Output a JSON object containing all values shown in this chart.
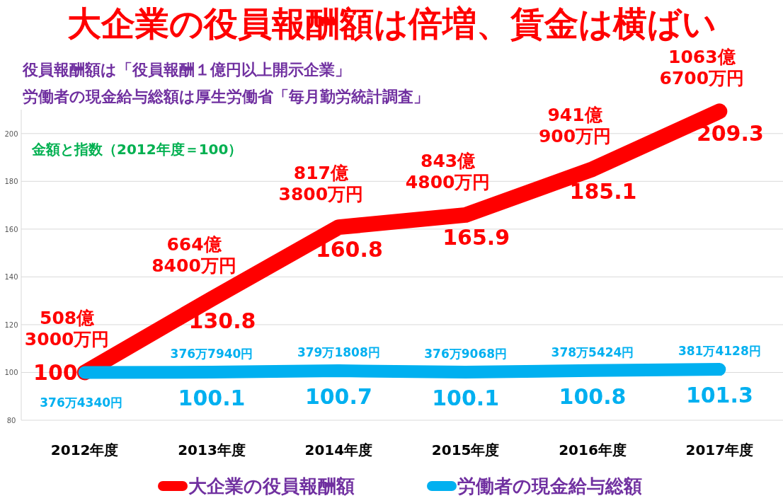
{
  "chart_data": {
    "type": "line",
    "title": "大企業の役員報酬額は倍増、賃金は横ばい",
    "subtitle": "役員報酬額は「役員報酬１億円以上開示企業」",
    "categories": [
      "2012年度",
      "2013年度",
      "2014年度",
      "2015年度",
      "2016年度",
      "2017年度"
    ],
    "series": [
      {
        "name": "大企業の役員報酬額",
        "color": "#ff0000",
        "values": [
          100,
          130.8,
          160.8,
          165.9,
          185.1,
          209.3
        ],
        "value_labels": [
          "100",
          "130.8",
          "160.8",
          "165.9",
          "185.1",
          "209.3"
        ]
      },
      {
        "name": "労働者の現金給与総額",
        "color": "#00b0f0",
        "values": [
          100,
          100.1,
          100.7,
          100.1,
          100.8,
          101.3
        ],
        "value_labels": [
          null,
          "100.1",
          "100.7",
          "100.1",
          "100.8",
          "101.3"
        ]
      }
    ],
    "annotations": [
      "労働者の現金給与総額は厚生労働省「毎月勤労統計調査」",
      "金額と指数（2012年度＝100）",
      {
        "text": "508億\n3000万円",
        "x": "2012年度",
        "y": 100
      },
      {
        "text": "664億\n8400万円",
        "x": "2013年度",
        "y": 130.8
      },
      {
        "text": "817億\n3800万円",
        "x": "2014年度",
        "y": 160.8
      },
      {
        "text": "843億\n4800万円",
        "x": "2015年度",
        "y": 165.9
      },
      {
        "text": "941億\n900万円",
        "x": "2016年度",
        "y": 185.1
      },
      {
        "text": "1063億\n6700万円",
        "x": "2017年度",
        "y": 209.3
      },
      {
        "text": "376万4340円",
        "x": "2012年度",
        "y": 100
      },
      {
        "text": "376万7940円",
        "x": "2013年度",
        "y": 100.1
      },
      {
        "text": "379万1808円",
        "x": "2014年度",
        "y": 100.7
      },
      {
        "text": "376万9068円",
        "x": "2015年度",
        "y": 100.1
      },
      {
        "text": "378万5424円",
        "x": "2016年度",
        "y": 100.8
      },
      {
        "text": "381万4128円",
        "x": "2017年度",
        "y": 101.3
      }
    ],
    "ylim": [
      80,
      210
    ],
    "yticks": [
      80,
      100,
      120,
      140,
      160,
      180,
      200
    ],
    "grid": "y",
    "legend": "bottom",
    "line_style": "solid"
  }
}
